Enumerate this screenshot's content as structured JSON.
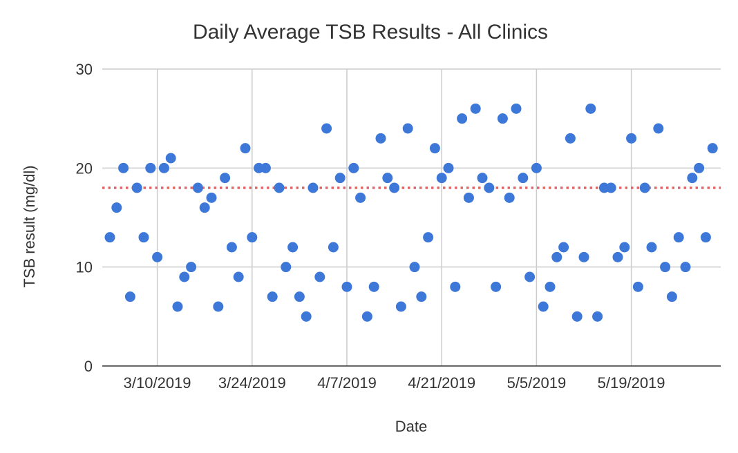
{
  "chart_data": {
    "type": "scatter",
    "title": "Daily Average TSB Results - All Clinics",
    "xlabel": "Date",
    "ylabel": "TSB result (mg/dl)",
    "xlim": [
      "2019-03-03",
      "2019-06-01"
    ],
    "ylim": [
      0,
      30
    ],
    "yticks": [
      0,
      10,
      20,
      30
    ],
    "xticks": [
      {
        "date": "2019-03-10",
        "label": "3/10/2019"
      },
      {
        "date": "2019-03-24",
        "label": "3/24/2019"
      },
      {
        "date": "2019-04-07",
        "label": "4/7/2019"
      },
      {
        "date": "2019-04-21",
        "label": "4/21/2019"
      },
      {
        "date": "2019-05-05",
        "label": "5/5/2019"
      },
      {
        "date": "2019-05-19",
        "label": "5/19/2019"
      }
    ],
    "grid": true,
    "point_color": "#3d78d8",
    "reference_line": {
      "y": 18,
      "color": "#e06666",
      "style": "dotted"
    },
    "points": [
      {
        "x": "2019-03-03",
        "y": 13
      },
      {
        "x": "2019-03-04",
        "y": 16
      },
      {
        "x": "2019-03-05",
        "y": 20
      },
      {
        "x": "2019-03-06",
        "y": 7
      },
      {
        "x": "2019-03-07",
        "y": 18
      },
      {
        "x": "2019-03-08",
        "y": 13
      },
      {
        "x": "2019-03-09",
        "y": 20
      },
      {
        "x": "2019-03-10",
        "y": 11
      },
      {
        "x": "2019-03-11",
        "y": 20
      },
      {
        "x": "2019-03-12",
        "y": 21
      },
      {
        "x": "2019-03-13",
        "y": 6
      },
      {
        "x": "2019-03-14",
        "y": 9
      },
      {
        "x": "2019-03-15",
        "y": 10
      },
      {
        "x": "2019-03-16",
        "y": 18
      },
      {
        "x": "2019-03-17",
        "y": 16
      },
      {
        "x": "2019-03-18",
        "y": 17
      },
      {
        "x": "2019-03-19",
        "y": 6
      },
      {
        "x": "2019-03-20",
        "y": 19
      },
      {
        "x": "2019-03-21",
        "y": 12
      },
      {
        "x": "2019-03-22",
        "y": 9
      },
      {
        "x": "2019-03-23",
        "y": 22
      },
      {
        "x": "2019-03-24",
        "y": 13
      },
      {
        "x": "2019-03-25",
        "y": 20
      },
      {
        "x": "2019-03-26",
        "y": 20
      },
      {
        "x": "2019-03-27",
        "y": 7
      },
      {
        "x": "2019-03-28",
        "y": 18
      },
      {
        "x": "2019-03-29",
        "y": 10
      },
      {
        "x": "2019-03-30",
        "y": 12
      },
      {
        "x": "2019-03-31",
        "y": 7
      },
      {
        "x": "2019-04-01",
        "y": 5
      },
      {
        "x": "2019-04-02",
        "y": 18
      },
      {
        "x": "2019-04-03",
        "y": 9
      },
      {
        "x": "2019-04-04",
        "y": 24
      },
      {
        "x": "2019-04-05",
        "y": 12
      },
      {
        "x": "2019-04-06",
        "y": 19
      },
      {
        "x": "2019-04-07",
        "y": 8
      },
      {
        "x": "2019-04-08",
        "y": 20
      },
      {
        "x": "2019-04-09",
        "y": 17
      },
      {
        "x": "2019-04-10",
        "y": 5
      },
      {
        "x": "2019-04-11",
        "y": 8
      },
      {
        "x": "2019-04-12",
        "y": 23
      },
      {
        "x": "2019-04-13",
        "y": 19
      },
      {
        "x": "2019-04-14",
        "y": 18
      },
      {
        "x": "2019-04-15",
        "y": 6
      },
      {
        "x": "2019-04-16",
        "y": 24
      },
      {
        "x": "2019-04-17",
        "y": 10
      },
      {
        "x": "2019-04-18",
        "y": 7
      },
      {
        "x": "2019-04-19",
        "y": 13
      },
      {
        "x": "2019-04-20",
        "y": 22
      },
      {
        "x": "2019-04-21",
        "y": 19
      },
      {
        "x": "2019-04-22",
        "y": 20
      },
      {
        "x": "2019-04-23",
        "y": 8
      },
      {
        "x": "2019-04-24",
        "y": 25
      },
      {
        "x": "2019-04-25",
        "y": 17
      },
      {
        "x": "2019-04-26",
        "y": 26
      },
      {
        "x": "2019-04-27",
        "y": 19
      },
      {
        "x": "2019-04-28",
        "y": 18
      },
      {
        "x": "2019-04-29",
        "y": 8
      },
      {
        "x": "2019-04-30",
        "y": 25
      },
      {
        "x": "2019-05-01",
        "y": 17
      },
      {
        "x": "2019-05-02",
        "y": 26
      },
      {
        "x": "2019-05-03",
        "y": 19
      },
      {
        "x": "2019-05-04",
        "y": 9
      },
      {
        "x": "2019-05-05",
        "y": 20
      },
      {
        "x": "2019-05-06",
        "y": 6
      },
      {
        "x": "2019-05-07",
        "y": 8
      },
      {
        "x": "2019-05-08",
        "y": 11
      },
      {
        "x": "2019-05-09",
        "y": 12
      },
      {
        "x": "2019-05-10",
        "y": 23
      },
      {
        "x": "2019-05-11",
        "y": 5
      },
      {
        "x": "2019-05-12",
        "y": 11
      },
      {
        "x": "2019-05-13",
        "y": 26
      },
      {
        "x": "2019-05-14",
        "y": 5
      },
      {
        "x": "2019-05-15",
        "y": 18
      },
      {
        "x": "2019-05-16",
        "y": 18
      },
      {
        "x": "2019-05-17",
        "y": 11
      },
      {
        "x": "2019-05-18",
        "y": 12
      },
      {
        "x": "2019-05-19",
        "y": 23
      },
      {
        "x": "2019-05-20",
        "y": 8
      },
      {
        "x": "2019-05-21",
        "y": 18
      },
      {
        "x": "2019-05-22",
        "y": 12
      },
      {
        "x": "2019-05-23",
        "y": 24
      },
      {
        "x": "2019-05-24",
        "y": 10
      },
      {
        "x": "2019-05-25",
        "y": 7
      },
      {
        "x": "2019-05-26",
        "y": 13
      },
      {
        "x": "2019-05-27",
        "y": 10
      },
      {
        "x": "2019-05-28",
        "y": 19
      },
      {
        "x": "2019-05-29",
        "y": 20
      },
      {
        "x": "2019-05-30",
        "y": 13
      },
      {
        "x": "2019-05-31",
        "y": 22
      }
    ]
  }
}
